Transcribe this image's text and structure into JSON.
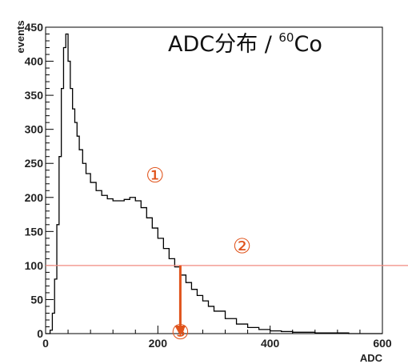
{
  "chart_data": {
    "type": "line",
    "title": "ADC分布 / ",
    "title_sup": "60",
    "title_tail": "Co",
    "xlabel": "ADC",
    "ylabel": "events",
    "xlim": [
      0,
      600
    ],
    "ylim": [
      0,
      450
    ],
    "grid": false,
    "x_ticks": [
      0,
      200,
      400,
      600
    ],
    "y_ticks": [
      0,
      50,
      100,
      150,
      200,
      250,
      300,
      350,
      400,
      450
    ],
    "y_tick_labels": [
      "0",
      "50",
      "100",
      "150",
      "200",
      "250",
      "300",
      "350",
      "400",
      "450"
    ],
    "series": [
      {
        "color": "#000000",
        "x": [
          0,
          8,
          12,
          16,
          20,
          24,
          28,
          32,
          36,
          40,
          44,
          48,
          52,
          56,
          60,
          66,
          72,
          80,
          90,
          100,
          110,
          120,
          130,
          140,
          150,
          160,
          170,
          180,
          190,
          200,
          210,
          220,
          230,
          240,
          250,
          260,
          270,
          280,
          290,
          300,
          320,
          340,
          360,
          380,
          400,
          420,
          440,
          460,
          480,
          500,
          520,
          540,
          560,
          580,
          600
        ],
        "y": [
          0,
          5,
          30,
          80,
          160,
          260,
          360,
          420,
          440,
          400,
          360,
          330,
          310,
          290,
          270,
          250,
          235,
          222,
          210,
          203,
          198,
          195,
          195,
          197,
          200,
          195,
          185,
          170,
          155,
          140,
          125,
          110,
          98,
          86,
          75,
          65,
          56,
          48,
          40,
          33,
          22,
          14,
          9,
          6,
          4,
          3,
          2,
          2,
          1,
          1,
          1,
          0,
          0,
          0,
          0
        ]
      }
    ],
    "hline": {
      "y": 100,
      "color": "#f08a80"
    },
    "arrow": {
      "x": 240,
      "y_from": 100,
      "y_to": 0,
      "color": "#e0531b"
    },
    "annotations": [
      {
        "text": "①",
        "x": 195,
        "y": 222
      },
      {
        "text": "②",
        "x": 350,
        "y": 118
      },
      {
        "text": "③",
        "x": 240,
        "y": -8
      }
    ]
  }
}
